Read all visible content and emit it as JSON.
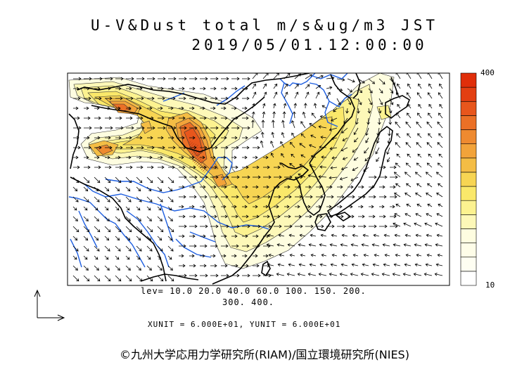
{
  "title": {
    "line1": "U-V&Dust total m/s&ug/m3 JST",
    "line2": "2019/05/01.12:00:00"
  },
  "levels": {
    "line1": "lev= 10.0 20.0 40.0 60.0 100. 150. 200.",
    "line2": "300. 400."
  },
  "units_text": "XUNIT = 6.000E+01, YUNIT = 6.000E+01",
  "colorbar": {
    "top_label": "400",
    "bottom_label": "10",
    "colors": [
      "#fefde0",
      "#fdf8b8",
      "#fcf290",
      "#fae86a",
      "#f7d553",
      "#f4bd45",
      "#f2a33a",
      "#ee8a30",
      "#eb7026",
      "#e8561c",
      "#e33f12"
    ]
  },
  "credit": "©九州大学応用力学研究所(RIAM)/国立環境研究所(NIES)",
  "colors": {
    "coast": "#000000",
    "rivers": "#1f5fe0",
    "arrows": "#000000",
    "dust_high": "#e8561c",
    "dust_low": "#fdf8b8"
  },
  "icons": {
    "axis_reference": "axis-arrows-icon"
  }
}
